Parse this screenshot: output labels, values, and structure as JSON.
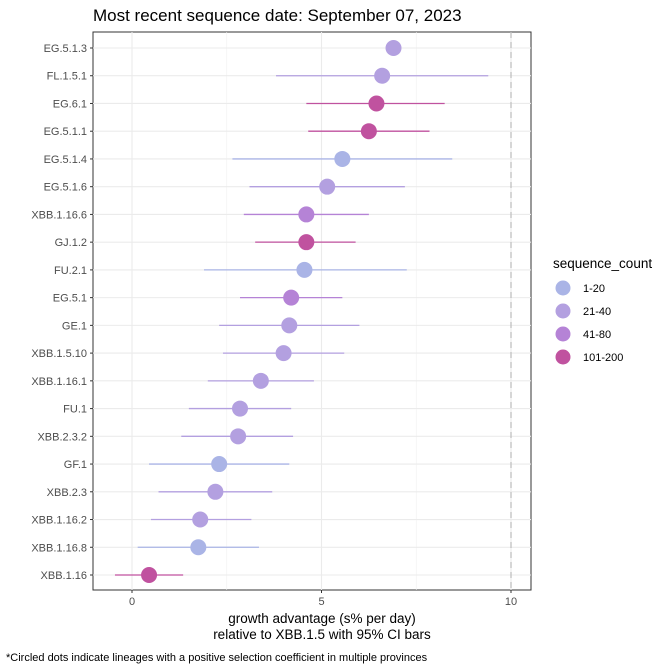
{
  "chart_data": {
    "type": "scatter",
    "title": "Most recent sequence date: September 07, 2023",
    "xlabel_line1": "growth advantage (s% per day)",
    "xlabel_line2": "relative to  XBB.1.5  with 95% CI bars",
    "xlim": [
      -1.5,
      11
    ],
    "xticks": [
      0,
      5,
      10
    ],
    "reference_line_x": 10,
    "grid": true,
    "legend": {
      "title": "sequence_count",
      "position": "right",
      "entries": [
        {
          "label": "1-20",
          "color": "#aab4e6"
        },
        {
          "label": "21-40",
          "color": "#b3a0e0"
        },
        {
          "label": "41-80",
          "color": "#b583d6"
        },
        {
          "label": "101-200",
          "color": "#c0529f"
        }
      ]
    },
    "categories": [
      "EG.5.1.3",
      "FL.1.5.1",
      "EG.6.1",
      "EG.5.1.1",
      "EG.5.1.4",
      "EG.5.1.6",
      "XBB.1.16.6",
      "GJ.1.2",
      "FU.2.1",
      "EG.5.1",
      "GE.1",
      "XBB.1.5.10",
      "XBB.1.16.1",
      "FU.1",
      "XBB.2.3.2",
      "GF.1",
      "XBB.2.3",
      "XBB.1.16.2",
      "XBB.1.16.8",
      "XBB.1.16"
    ],
    "points": [
      {
        "lineage": "EG.5.1.3",
        "value": 6.9,
        "ci_low": null,
        "ci_high": null,
        "group": "21-40"
      },
      {
        "lineage": "FL.1.5.1",
        "value": 6.6,
        "ci_low": 3.8,
        "ci_high": 9.4,
        "group": "21-40"
      },
      {
        "lineage": "EG.6.1",
        "value": 6.45,
        "ci_low": 4.6,
        "ci_high": 8.25,
        "group": "101-200"
      },
      {
        "lineage": "EG.5.1.1",
        "value": 6.25,
        "ci_low": 4.65,
        "ci_high": 7.85,
        "group": "101-200"
      },
      {
        "lineage": "EG.5.1.4",
        "value": 5.55,
        "ci_low": 2.65,
        "ci_high": 8.45,
        "group": "1-20"
      },
      {
        "lineage": "EG.5.1.6",
        "value": 5.15,
        "ci_low": 3.1,
        "ci_high": 7.2,
        "group": "21-40"
      },
      {
        "lineage": "XBB.1.16.6",
        "value": 4.6,
        "ci_low": 2.95,
        "ci_high": 6.25,
        "group": "41-80"
      },
      {
        "lineage": "GJ.1.2",
        "value": 4.6,
        "ci_low": 3.25,
        "ci_high": 5.9,
        "group": "101-200"
      },
      {
        "lineage": "FU.2.1",
        "value": 4.55,
        "ci_low": 1.9,
        "ci_high": 7.25,
        "group": "1-20"
      },
      {
        "lineage": "EG.5.1",
        "value": 4.2,
        "ci_low": 2.85,
        "ci_high": 5.55,
        "group": "41-80"
      },
      {
        "lineage": "GE.1",
        "value": 4.15,
        "ci_low": 2.3,
        "ci_high": 6.0,
        "group": "21-40"
      },
      {
        "lineage": "XBB.1.5.10",
        "value": 4.0,
        "ci_low": 2.4,
        "ci_high": 5.6,
        "group": "21-40"
      },
      {
        "lineage": "XBB.1.16.1",
        "value": 3.4,
        "ci_low": 2.0,
        "ci_high": 4.8,
        "group": "21-40"
      },
      {
        "lineage": "FU.1",
        "value": 2.85,
        "ci_low": 1.5,
        "ci_high": 4.2,
        "group": "21-40"
      },
      {
        "lineage": "XBB.2.3.2",
        "value": 2.8,
        "ci_low": 1.3,
        "ci_high": 4.25,
        "group": "21-40"
      },
      {
        "lineage": "GF.1",
        "value": 2.3,
        "ci_low": 0.45,
        "ci_high": 4.15,
        "group": "1-20"
      },
      {
        "lineage": "XBB.2.3",
        "value": 2.2,
        "ci_low": 0.7,
        "ci_high": 3.7,
        "group": "21-40"
      },
      {
        "lineage": "XBB.1.16.2",
        "value": 1.8,
        "ci_low": 0.5,
        "ci_high": 3.15,
        "group": "21-40"
      },
      {
        "lineage": "XBB.1.16.8",
        "value": 1.75,
        "ci_low": 0.15,
        "ci_high": 3.35,
        "group": "1-20"
      },
      {
        "lineage": "XBB.1.16",
        "value": 0.45,
        "ci_low": -0.45,
        "ci_high": 1.35,
        "group": "101-200"
      }
    ]
  },
  "footnote": "*Circled dots indicate lineages with a positive selection coefficient in multiple provinces"
}
